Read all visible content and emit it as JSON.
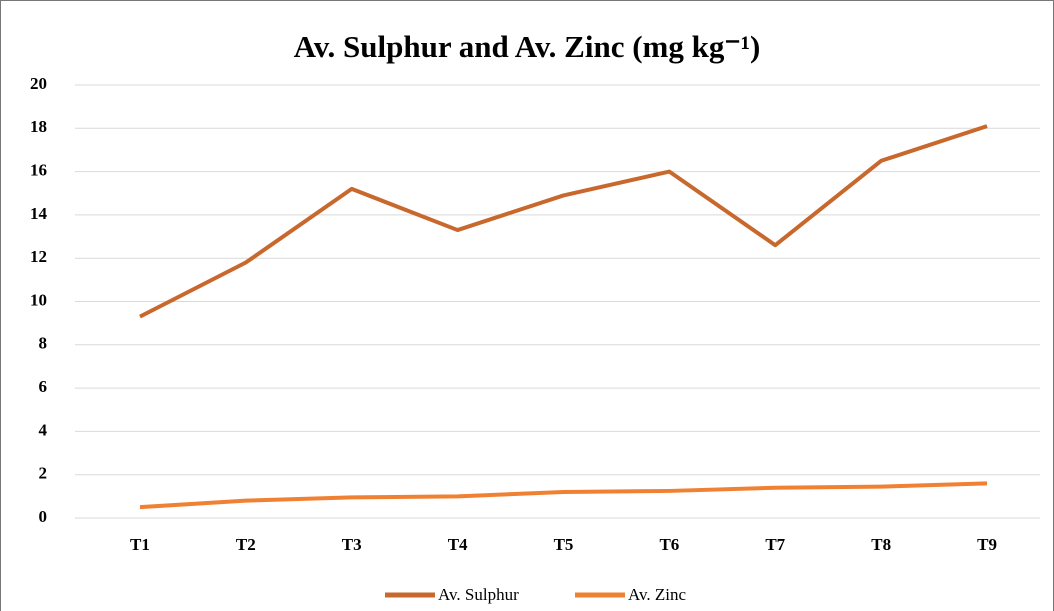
{
  "chart_data": {
    "type": "line",
    "title": "Av. Sulphur and Av. Zinc (mg kg⁻¹)",
    "categories": [
      "T1",
      "T2",
      "T3",
      "T4",
      "T5",
      "T6",
      "T7",
      "T8",
      "T9"
    ],
    "series": [
      {
        "name": "Av. Sulphur",
        "color": "#c8682c",
        "values": [
          9.3,
          11.8,
          15.2,
          13.3,
          14.9,
          16.0,
          12.6,
          16.5,
          18.1
        ]
      },
      {
        "name": "Av. Zinc",
        "color": "#f08132",
        "values": [
          0.5,
          0.8,
          0.95,
          1.0,
          1.2,
          1.25,
          1.4,
          1.45,
          1.6
        ]
      }
    ],
    "ylim": [
      0,
      20
    ],
    "yticks": [
      0,
      2,
      4,
      6,
      8,
      10,
      12,
      14,
      16,
      18,
      20
    ],
    "grid": true,
    "legend": "bottom"
  }
}
